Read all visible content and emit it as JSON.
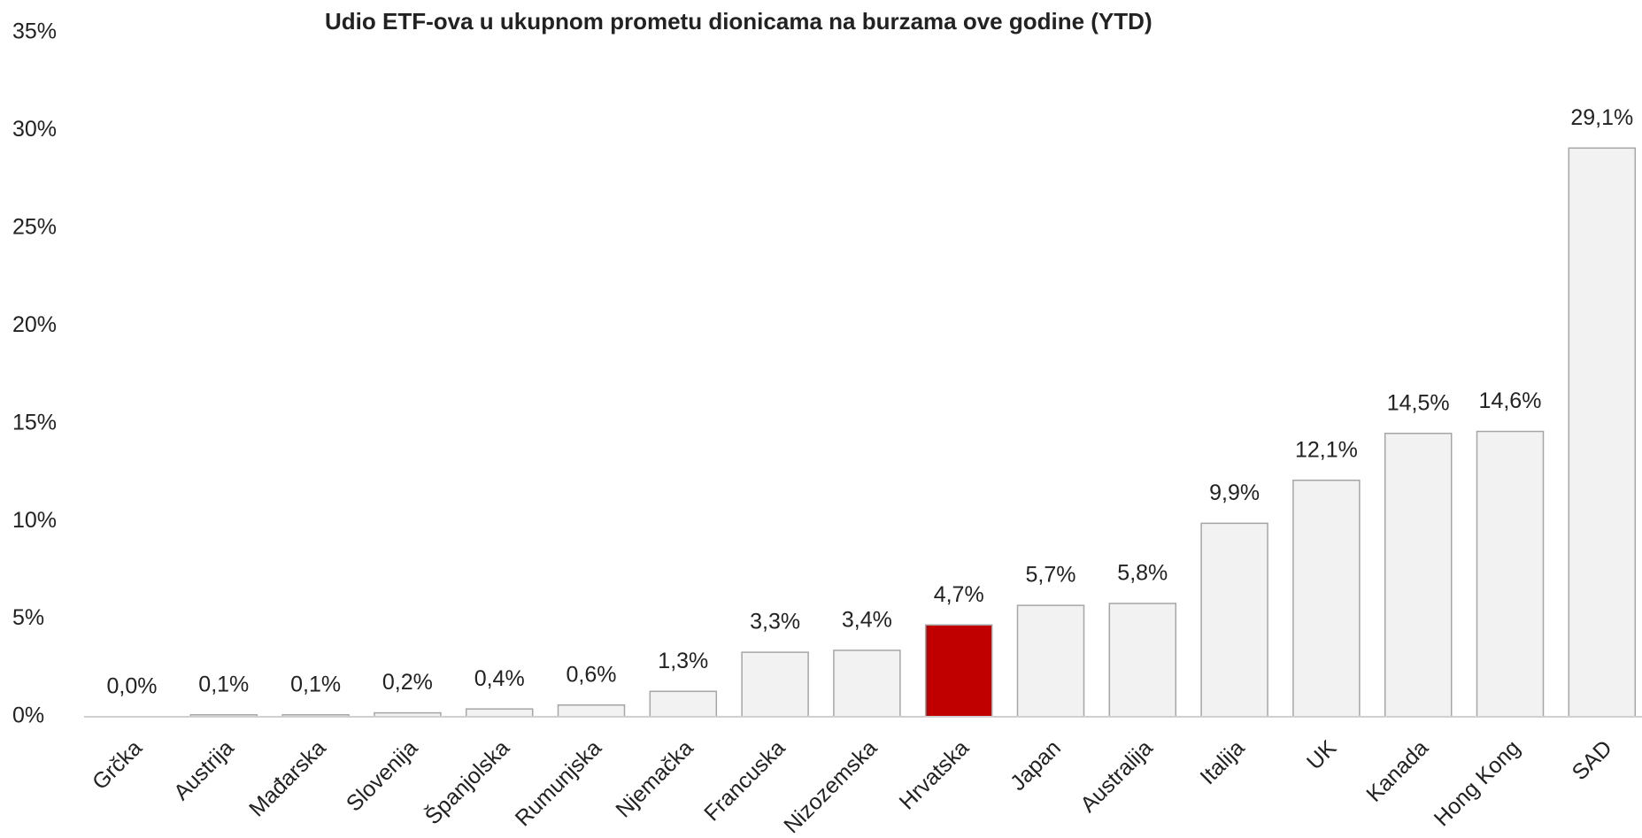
{
  "chart_data": {
    "type": "bar",
    "title": "Udio ETF-ova u ukupnom prometu dionicama na burzama ove godine (YTD)",
    "categories": [
      "Grčka",
      "Austrija",
      "Mađarska",
      "Slovenija",
      "Španjolska",
      "Rumunjska",
      "Njemačka",
      "Francuska",
      "Nizozemska",
      "Hrvatska",
      "Japan",
      "Australija",
      "Italija",
      "UK",
      "Kanada",
      "Hong Kong",
      "SAD"
    ],
    "values": [
      0.0,
      0.1,
      0.1,
      0.2,
      0.4,
      0.6,
      1.3,
      3.3,
      3.4,
      4.7,
      5.7,
      5.8,
      9.9,
      12.1,
      14.5,
      14.6,
      29.1
    ],
    "value_labels": [
      "0,0%",
      "0,1%",
      "0,1%",
      "0,2%",
      "0,4%",
      "0,6%",
      "1,3%",
      "3,3%",
      "3,4%",
      "4,7%",
      "5,7%",
      "5,8%",
      "9,9%",
      "12,1%",
      "14,5%",
      "14,6%",
      "29,1%"
    ],
    "colors": [
      "#f2f2f2",
      "#f2f2f2",
      "#f2f2f2",
      "#f2f2f2",
      "#f2f2f2",
      "#f2f2f2",
      "#f2f2f2",
      "#f2f2f2",
      "#f2f2f2",
      "#c00000",
      "#f2f2f2",
      "#f2f2f2",
      "#f2f2f2",
      "#f2f2f2",
      "#f2f2f2",
      "#f2f2f2",
      "#f2f2f2"
    ],
    "ylim": [
      0,
      35
    ],
    "yticks": [
      {
        "value": 0,
        "label": "0%"
      },
      {
        "value": 5,
        "label": "5%"
      },
      {
        "value": 10,
        "label": "10%"
      },
      {
        "value": 15,
        "label": "15%"
      },
      {
        "value": 20,
        "label": "20%"
      },
      {
        "value": 25,
        "label": "25%"
      },
      {
        "value": 30,
        "label": "30%"
      },
      {
        "value": 35,
        "label": "35%"
      }
    ],
    "grid": false
  }
}
